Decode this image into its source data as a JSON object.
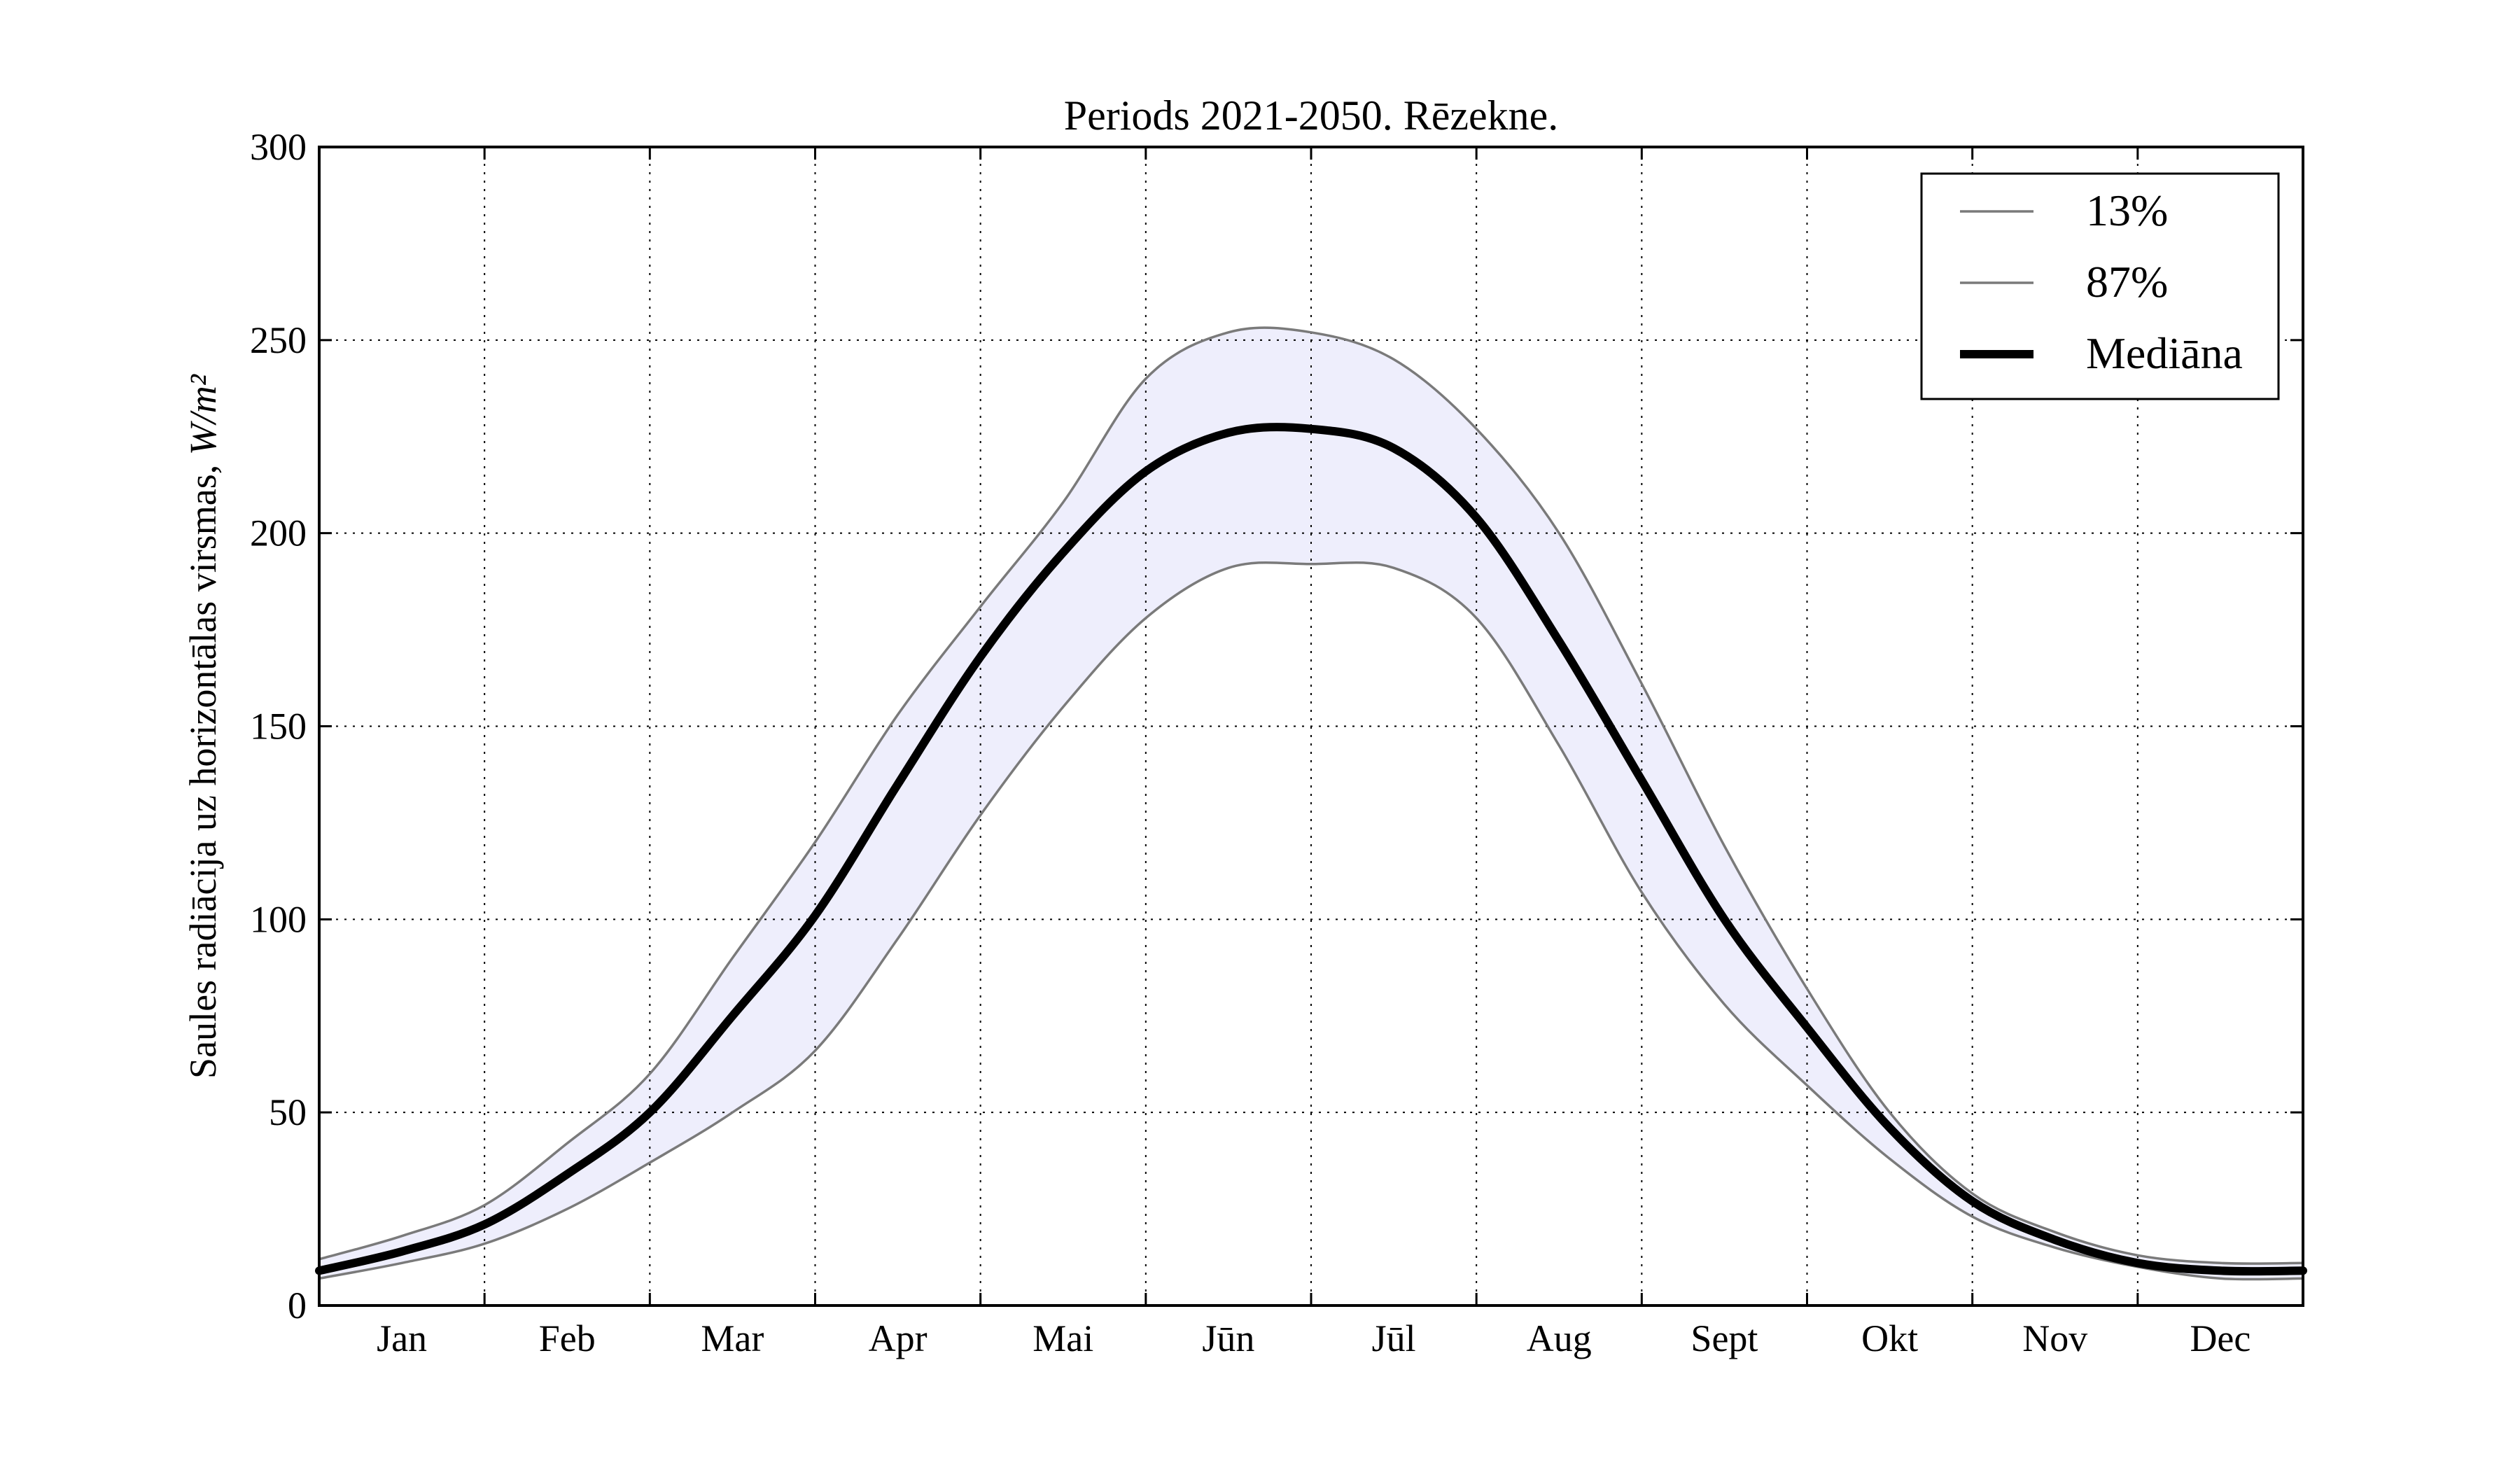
{
  "chart_data": {
    "type": "line",
    "title": "Periods 2021-2050. Rēzekne.",
    "ylabel": "Saules radiācija uz horizontālas virsmas, ",
    "ylabel_unit": "W/m²",
    "xlabel": "",
    "ylim": [
      0,
      300
    ],
    "yticks": [
      "0",
      "50",
      "100",
      "150",
      "200",
      "250",
      "300"
    ],
    "categories": [
      "Jan",
      "Feb",
      "Mar",
      "Apr",
      "Mai",
      "Jūn",
      "Jūl",
      "Aug",
      "Sept",
      "Okt",
      "Nov",
      "Dec"
    ],
    "grid": true,
    "legend_position": "top-right",
    "fill_color": "#eeeefc",
    "series": [
      {
        "name": "13%",
        "color": "#7a7a7a",
        "x": [
          1,
          1.5,
          2,
          2.5,
          3,
          3.5,
          4,
          4.5,
          5,
          5.5,
          6,
          6.5,
          7,
          7.5,
          8,
          8.5,
          9,
          9.5,
          10,
          10.5,
          11,
          11.5,
          12,
          12.5,
          13
        ],
        "values": [
          7,
          11,
          16,
          25,
          37,
          50,
          66,
          95,
          127,
          155,
          178,
          191,
          192,
          191,
          178,
          145,
          107,
          78,
          57,
          38,
          23,
          15,
          10,
          7,
          7
        ]
      },
      {
        "name": "87%",
        "color": "#7a7a7a",
        "x": [
          1,
          1.5,
          2,
          2.5,
          3,
          3.5,
          4,
          4.5,
          5,
          5.5,
          6,
          6.5,
          7,
          7.5,
          8,
          8.5,
          9,
          9.5,
          10,
          10.5,
          11,
          11.5,
          12,
          12.5,
          13
        ],
        "values": [
          12,
          18,
          26,
          42,
          60,
          90,
          120,
          153,
          181,
          208,
          240,
          252,
          252,
          245,
          227,
          200,
          161,
          119,
          82,
          50,
          29,
          19,
          13,
          11,
          11
        ]
      },
      {
        "name": "Mediāna",
        "color": "#000000",
        "x": [
          1,
          1.5,
          2,
          2.5,
          3,
          3.5,
          4,
          4.5,
          5,
          5.5,
          6,
          6.5,
          7,
          7.5,
          8,
          8.5,
          9,
          9.5,
          10,
          10.5,
          11,
          11.5,
          12,
          12.5,
          13
        ],
        "values": [
          9,
          14,
          21,
          34,
          50,
          75,
          101,
          135,
          168,
          195,
          216,
          226,
          227,
          222,
          204,
          172,
          136,
          100,
          72,
          46,
          27,
          17,
          11,
          9,
          9
        ]
      }
    ]
  }
}
